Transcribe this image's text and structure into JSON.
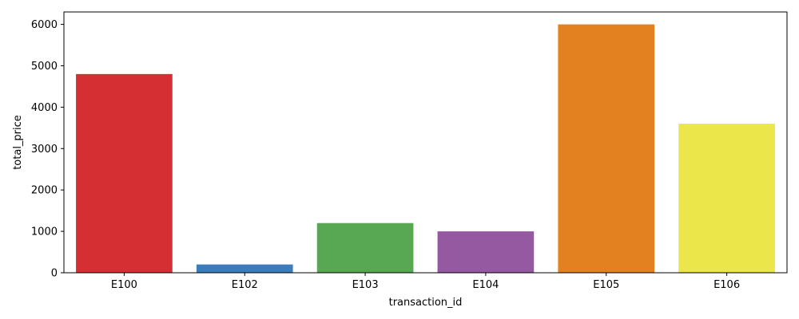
{
  "chart_data": {
    "type": "bar",
    "title": "",
    "xlabel": "transaction_id",
    "ylabel": "total_price",
    "categories": [
      "E100",
      "E102",
      "E103",
      "E104",
      "E105",
      "E106"
    ],
    "values": [
      4800,
      200,
      1200,
      1000,
      6000,
      3600
    ],
    "colors": [
      "#d62f33",
      "#3a7dba",
      "#57a753",
      "#9459a0",
      "#e38020",
      "#ebe64a"
    ],
    "ylim": [
      0,
      6300
    ],
    "yticks": [
      0,
      1000,
      2000,
      3000,
      4000,
      5000,
      6000
    ],
    "yticklabels": [
      "0",
      "1000",
      "2000",
      "3000",
      "4000",
      "5000",
      "6000"
    ],
    "grid": false,
    "legend": "none"
  }
}
